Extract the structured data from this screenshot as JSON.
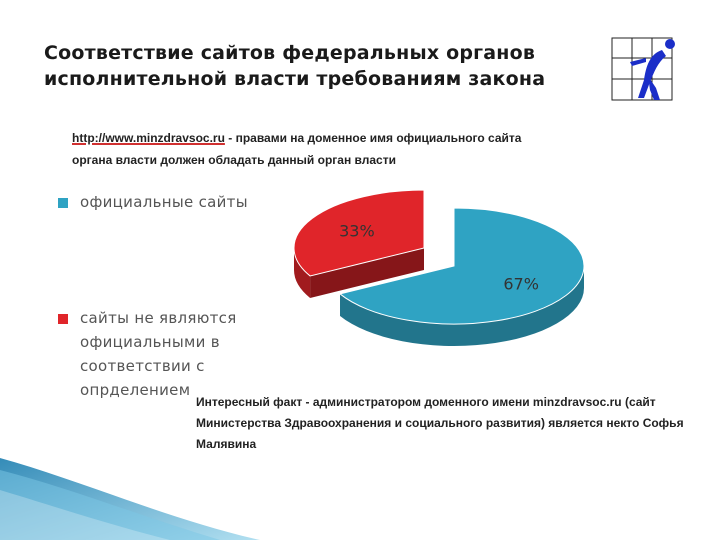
{
  "slide": {
    "title_line1": "Соответствие сайтов федеральных органов",
    "title_line2": "исполнительной власти требованиям закона",
    "url_note": {
      "url": "http://www.minzdravsoc.ru",
      "text_line1": " - правами на доменное имя официального сайта",
      "text_line2": "органа власти должен обладать данный орган власти"
    },
    "fact": "Интересный факт - администратором доменного имени minzdravsoc.ru (сайт Министерства Здравоохранения и социального развития) является некто Софья Малявина"
  },
  "chart_data": {
    "type": "pie",
    "title": "",
    "series": [
      {
        "name": "официальные сайты",
        "value": 67,
        "label": "67%",
        "color": "#2fa3c3"
      },
      {
        "name": "сайты не являются официальными в соответствии с опрделением",
        "value": 33,
        "label": "33%",
        "color": "#e0252a"
      }
    ],
    "legend_position": "left"
  },
  "colors": {
    "accent_blue": "#2fa3c3",
    "accent_red": "#e0252a",
    "logo_blue": "#1b2ec8"
  },
  "icons": {
    "logo": "runner-logo-icon"
  }
}
